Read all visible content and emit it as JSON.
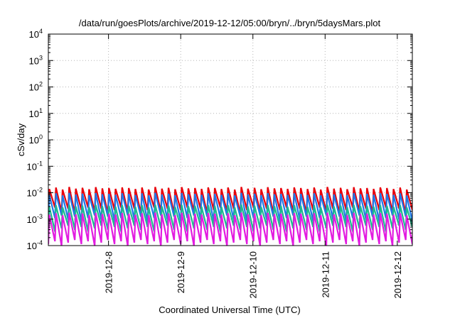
{
  "chart_data": {
    "type": "line",
    "title": "/data/run/goesPlots/archive/2019-12-12/05:00/bryn/../bryn/5daysMars.plot",
    "xlabel": "Coordinated Universal Time (UTC)",
    "ylabel": "cSv/day",
    "yscale": "log",
    "ylim_exponents": [
      -4,
      4
    ],
    "y_tick_base": "10",
    "y_ticks": [
      {
        "exp": "-4"
      },
      {
        "exp": "-3"
      },
      {
        "exp": "-2"
      },
      {
        "exp": "-1"
      },
      {
        "exp": "0"
      },
      {
        "exp": "1"
      },
      {
        "exp": "2"
      },
      {
        "exp": "3"
      },
      {
        "exp": "4"
      }
    ],
    "xlim": [
      "2019-12-07 04:00",
      "2019-12-12 05:00"
    ],
    "x_ticks": [
      {
        "date": "2019-12-08 00:00",
        "label": "2019-12-8"
      },
      {
        "date": "2019-12-09 00:00",
        "label": "2019-12-9"
      },
      {
        "date": "2019-12-10 00:00",
        "label": "2019-12-10"
      },
      {
        "date": "2019-12-11 00:00",
        "label": "2019-12-11"
      },
      {
        "date": "2019-12-12 00:00",
        "label": "2019-12-12"
      }
    ],
    "grid": true,
    "cycle_hours": 2.2,
    "series": [
      {
        "color": "#e8000b",
        "peak": 0.015,
        "trough": 0.0022
      },
      {
        "color": "#1f78e6",
        "peak": 0.009,
        "trough": 0.0011
      },
      {
        "color": "#1fb98f",
        "peak": 0.0032,
        "trough": 0.00045
      },
      {
        "color": "#e21be0",
        "peak": 0.0016,
        "trough": 0.00013
      }
    ]
  }
}
